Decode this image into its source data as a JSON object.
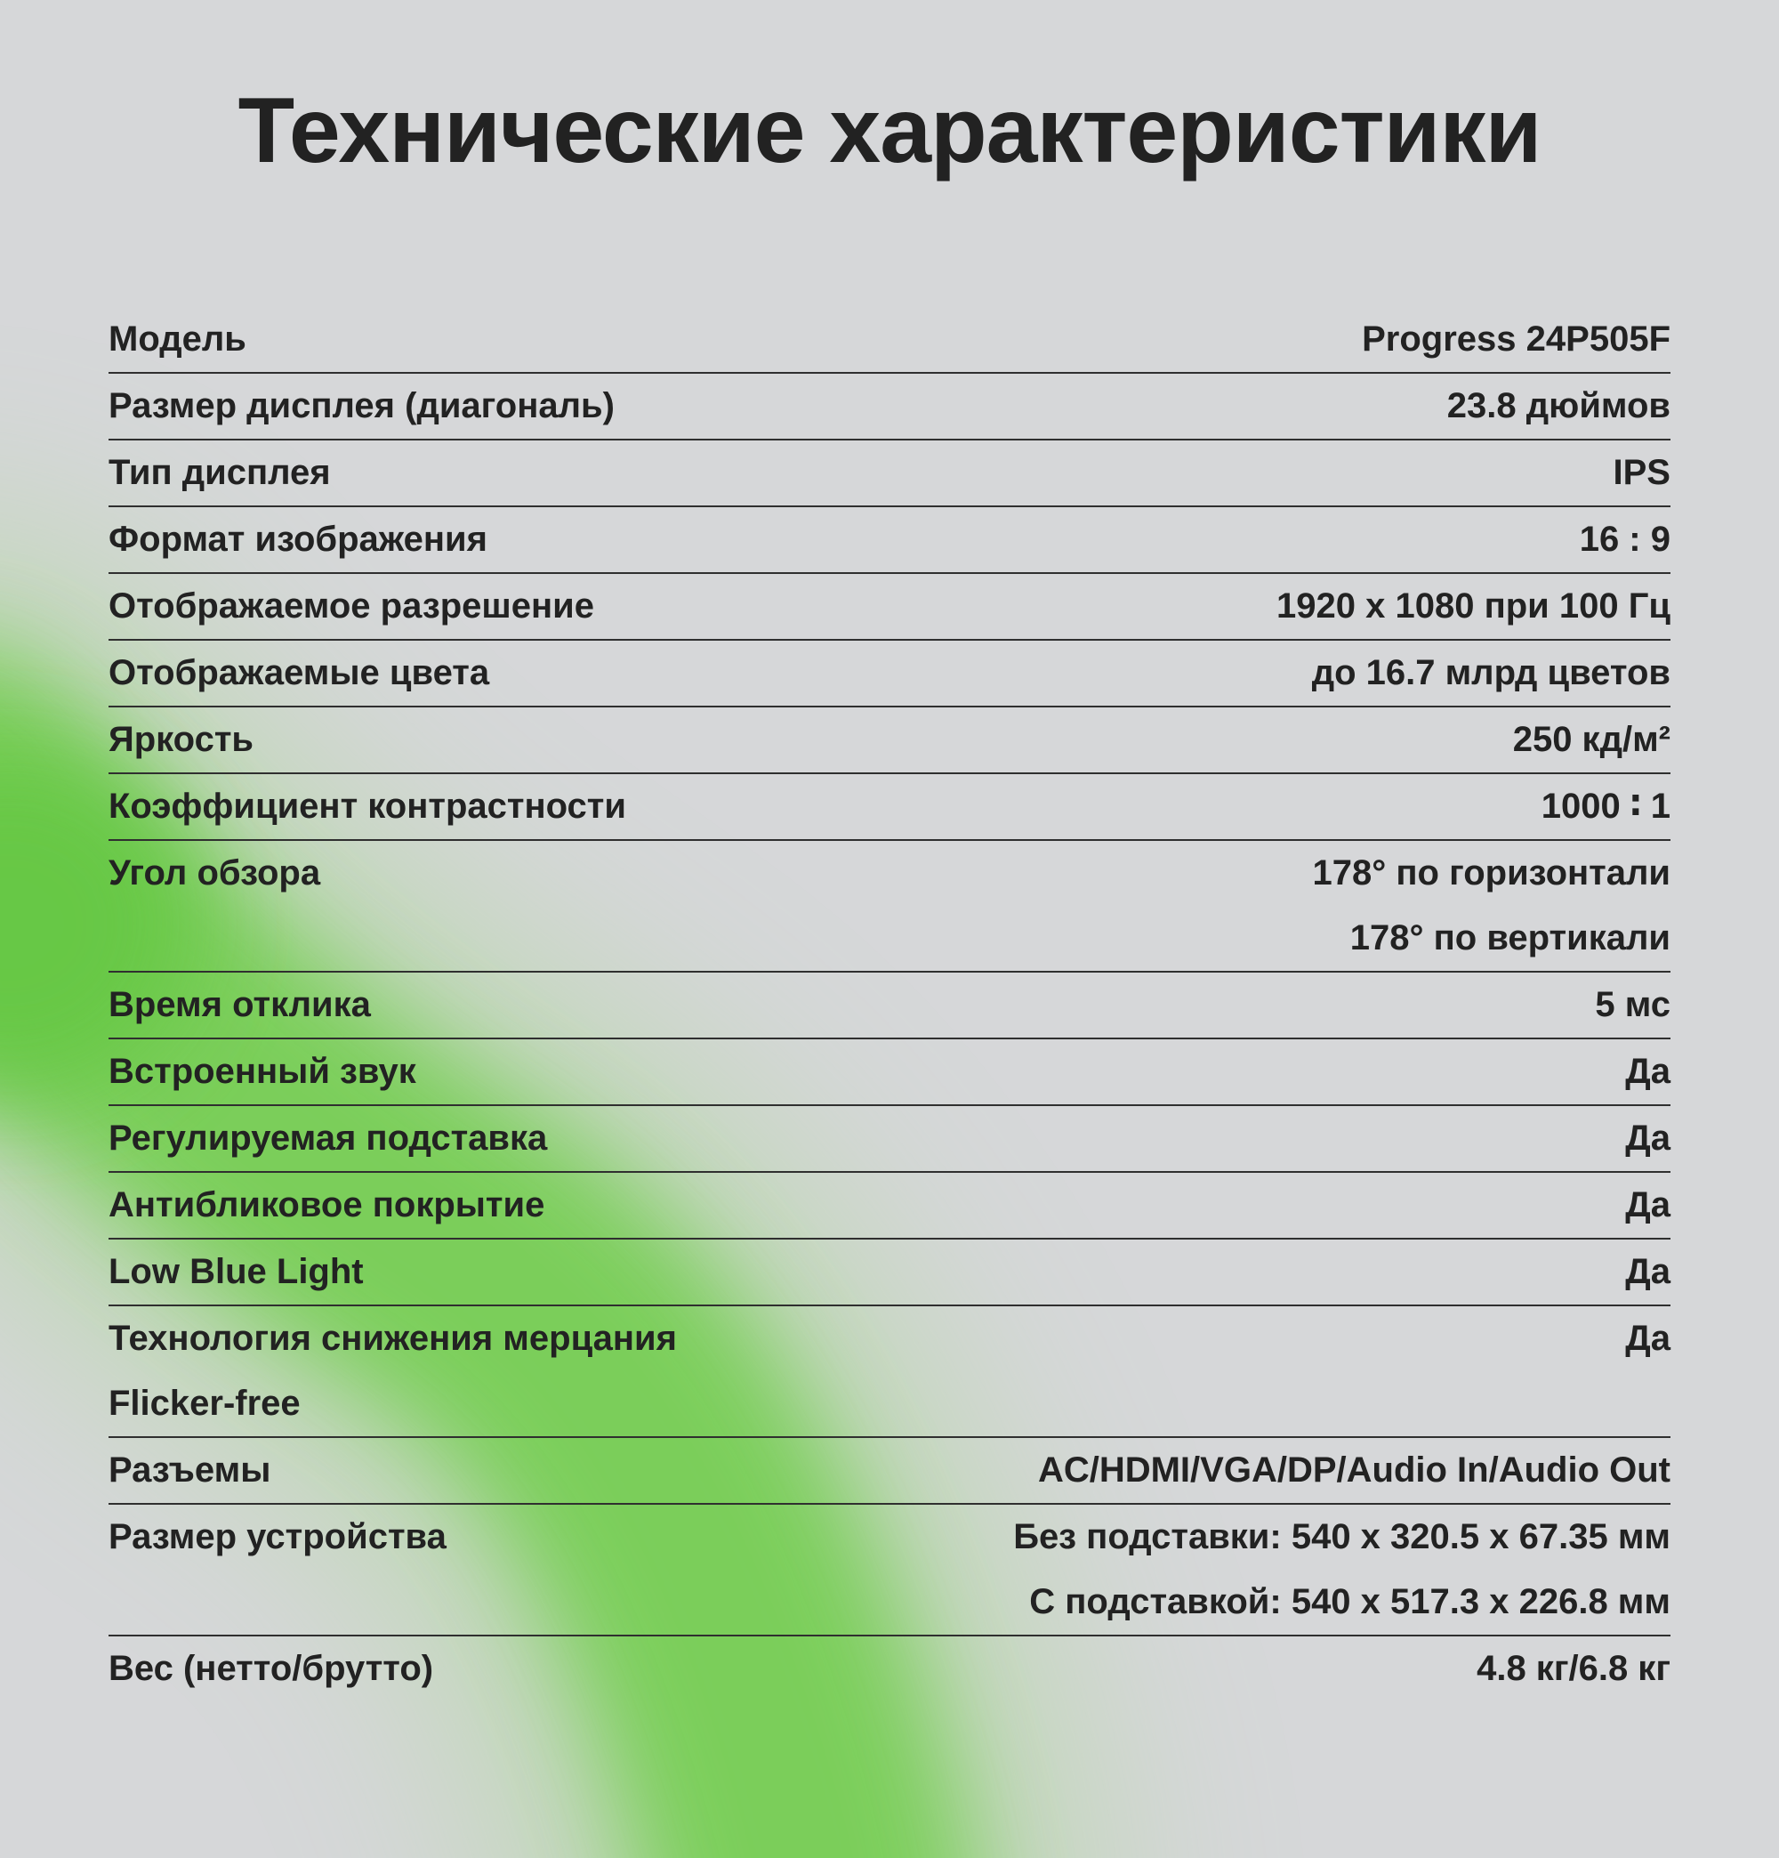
{
  "page": {
    "title": "Технические характеристики"
  },
  "colors": {
    "background": "#d6d7d9",
    "text": "#222222",
    "divider": "#2f2f2f",
    "accent_green": "#74ce51",
    "accent_light": "#8fd86e",
    "accent_strong": "#66c844"
  },
  "specs_table": {
    "rows": [
      {
        "label": [
          "Модель"
        ],
        "value": [
          "Progress 24P505F"
        ]
      },
      {
        "label": [
          "Размер дисплея (диагональ)"
        ],
        "value": [
          "23.8 дюймов"
        ]
      },
      {
        "label": [
          "Тип дисплея"
        ],
        "value": [
          "IPS"
        ]
      },
      {
        "label": [
          "Формат изображения"
        ],
        "value": [
          "16 : 9"
        ]
      },
      {
        "label": [
          "Отображаемое разрешение"
        ],
        "value": [
          "1920 x 1080 при 100 Гц"
        ]
      },
      {
        "label": [
          "Отображаемые цвета"
        ],
        "value": [
          "до 16.7 млрд цветов"
        ]
      },
      {
        "label": [
          "Яркость"
        ],
        "value": [
          "250 кд/м²"
        ]
      },
      {
        "label": [
          "Коэффициент контрастности"
        ],
        "value": [
          "1000 ∶ 1"
        ]
      },
      {
        "label": [
          "Угол обзора"
        ],
        "value": [
          "178° по горизонтали",
          "178° по вертикали"
        ]
      },
      {
        "label": [
          "Время отклика"
        ],
        "value": [
          "5 мс"
        ]
      },
      {
        "label": [
          "Встроенный звук"
        ],
        "value": [
          "Да"
        ]
      },
      {
        "label": [
          "Регулируемая подставка"
        ],
        "value": [
          "Да"
        ]
      },
      {
        "label": [
          "Антибликовое покрытие"
        ],
        "value": [
          "Да"
        ]
      },
      {
        "label": [
          "Low Blue Light"
        ],
        "value": [
          "Да"
        ]
      },
      {
        "label": [
          "Технология снижения мерцания",
          "Flicker-free"
        ],
        "value": [
          "Да"
        ]
      },
      {
        "label": [
          "Разъемы"
        ],
        "value": [
          "AC/HDMI/VGA/DP/Audio In/Audio Out"
        ]
      },
      {
        "label": [
          "Размер устройства"
        ],
        "value": [
          "Без подставки: 540 x 320.5 x 67.35 мм",
          "С подставкой: 540 x 517.3 x 226.8 мм"
        ]
      },
      {
        "label": [
          "Вес (нетто/брутто)"
        ],
        "value": [
          "4.8 кг/6.8 кг"
        ]
      }
    ]
  }
}
